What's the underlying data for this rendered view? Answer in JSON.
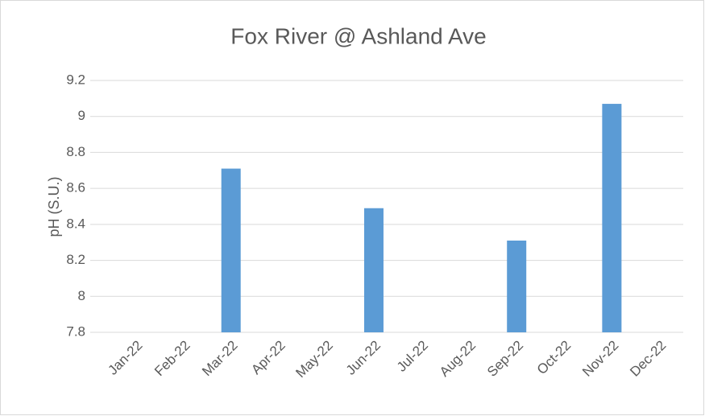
{
  "chart_data": {
    "type": "bar",
    "title": "Fox River @ Ashland Ave",
    "y_label": "pH (S.U.)",
    "categories": [
      "Jan-22",
      "Feb-22",
      "Mar-22",
      "Apr-22",
      "May-22",
      "Jun-22",
      "Jul-22",
      "Aug-22",
      "Sep-22",
      "Oct-22",
      "Nov-22",
      "Dec-22"
    ],
    "values": [
      null,
      null,
      8.71,
      null,
      null,
      8.49,
      null,
      null,
      8.31,
      null,
      9.07,
      null
    ],
    "color": "#5b9bd5",
    "ylim": [
      7.8,
      9.2
    ],
    "yticks": [
      7.8,
      8,
      8.2,
      8.4,
      8.6,
      8.8,
      9,
      9.2
    ],
    "grid": true
  }
}
